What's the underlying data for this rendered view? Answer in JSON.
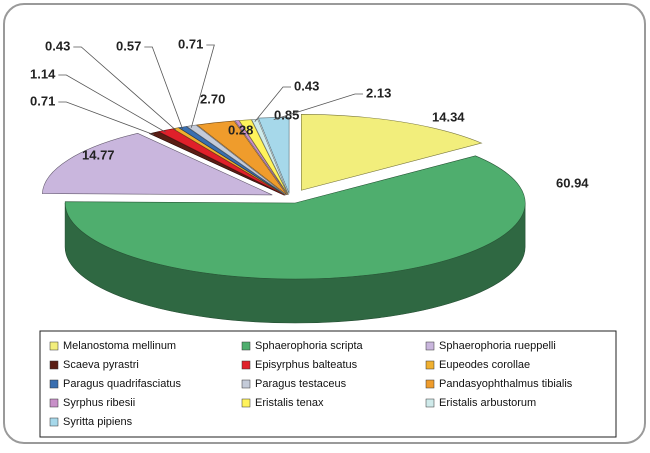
{
  "chart_data": {
    "type": "pie3d",
    "categories": [
      "Melanostoma mellinum",
      "Sphaerophoria scripta",
      "Sphaerophoria rueppelli",
      "Scaeva pyrastri",
      "Episyrphus balteatus",
      "Eupeodes corollae",
      "Paragus quadrifasciatus",
      "Paragus testaceus",
      "Pandasyophthalmus tibialis",
      "Syrphus ribesii",
      "Eristalis tenax",
      "Eristalis arbustorum",
      "Syritta pipiens"
    ],
    "values": [
      14.34,
      60.94,
      14.77,
      0.71,
      1.14,
      0.43,
      0.57,
      0.71,
      2.7,
      0.28,
      0.85,
      0.43,
      2.13
    ],
    "value_labels": [
      "14.34",
      "60.94",
      "14.77",
      "0.71",
      "1.14",
      "0.43",
      "0.57",
      "0.71",
      "2.70",
      "0.28",
      "0.85",
      "0.43",
      "2.13"
    ],
    "colors": [
      "#f2ee7c",
      "#4fae6e",
      "#c9b6dd",
      "#5a1e14",
      "#e0202a",
      "#f0b030",
      "#3a6fb0",
      "#c4cbd9",
      "#ef9c2c",
      "#c890c8",
      "#fff35c",
      "#cfeaea",
      "#a6d8ea"
    ],
    "legend": "bottom"
  }
}
